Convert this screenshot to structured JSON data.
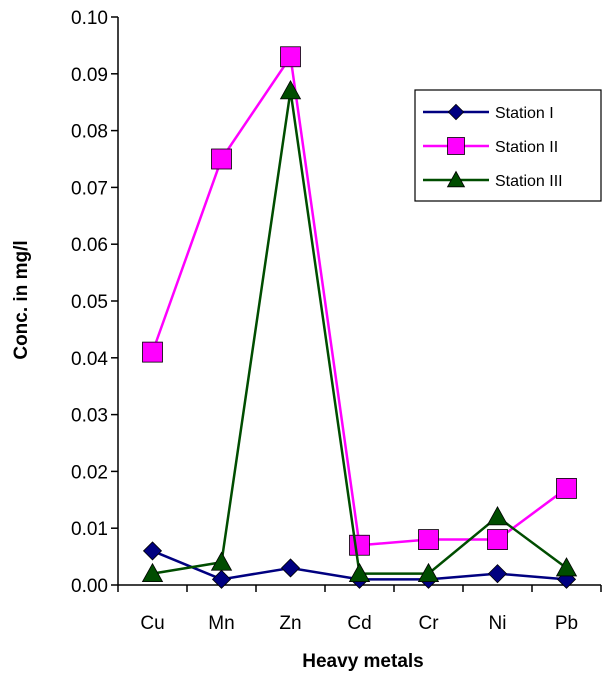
{
  "chart_data": {
    "type": "line",
    "title": "",
    "xlabel": "Heavy metals",
    "ylabel": "Conc. in mg/l",
    "categories": [
      "Cu",
      "Mn",
      "Zn",
      "Cd",
      "Cr",
      "Ni",
      "Pb"
    ],
    "ylim": [
      0,
      0.1
    ],
    "yticks": [
      "0.00",
      "0.01",
      "0.02",
      "0.03",
      "0.04",
      "0.05",
      "0.06",
      "0.07",
      "0.08",
      "0.09",
      "0.10"
    ],
    "grid": false,
    "legend_position": "top-right",
    "series": [
      {
        "name": "Station I",
        "color": "#000080",
        "marker": "diamond",
        "values": [
          0.006,
          0.001,
          0.003,
          0.001,
          0.001,
          0.002,
          0.001
        ]
      },
      {
        "name": "Station II",
        "color": "#ff00ff",
        "marker": "square",
        "values": [
          0.041,
          0.075,
          0.093,
          0.007,
          0.008,
          0.008,
          0.017
        ]
      },
      {
        "name": "Station III",
        "color": "#004d00",
        "marker": "triangle",
        "values": [
          0.002,
          0.004,
          0.087,
          0.002,
          0.002,
          0.012,
          0.003
        ]
      }
    ]
  }
}
